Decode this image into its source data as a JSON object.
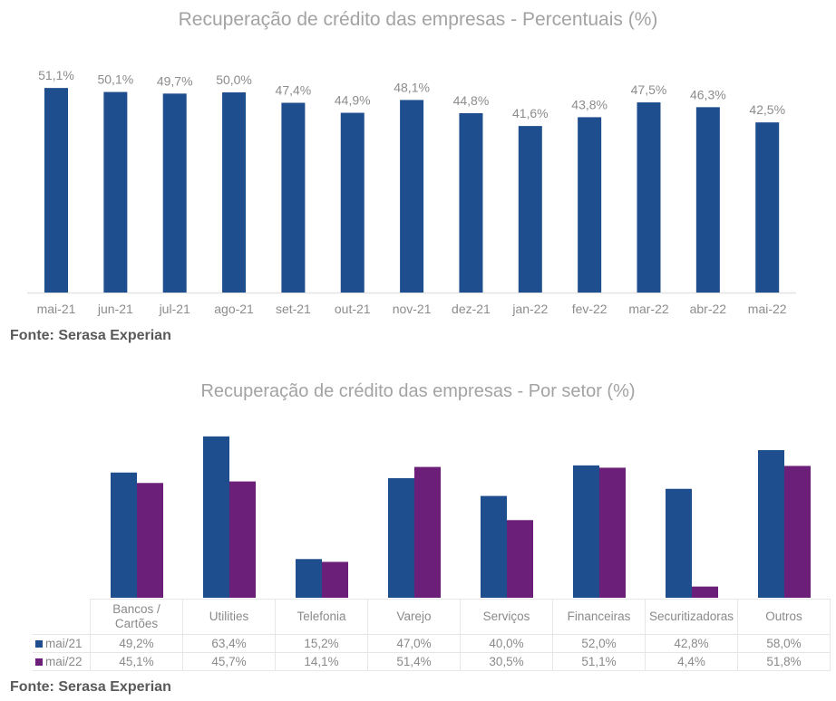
{
  "chart_data": [
    {
      "type": "bar",
      "title": "Recuperação de crédito das empresas - Percentuais (%)",
      "source": "Fonte: Serasa Experian",
      "categories": [
        "mai-21",
        "jun-21",
        "jul-21",
        "ago-21",
        "set-21",
        "out-21",
        "nov-21",
        "dez-21",
        "jan-22",
        "fev-22",
        "mar-22",
        "abr-22",
        "mai-22"
      ],
      "values": [
        51.1,
        50.1,
        49.7,
        50.0,
        47.4,
        44.9,
        48.1,
        44.8,
        41.6,
        43.8,
        47.5,
        46.3,
        42.5
      ],
      "labels": [
        "51,1%",
        "50,1%",
        "49,7%",
        "50,0%",
        "47,4%",
        "44,9%",
        "48,1%",
        "44,8%",
        "41,6%",
        "43,8%",
        "47,5%",
        "46,3%",
        "42,5%"
      ],
      "xlabel": "",
      "ylabel": "",
      "ylim": [
        0,
        55
      ],
      "grid": false,
      "color": "#1f4e8f"
    },
    {
      "type": "bar",
      "title": "Recuperação de crédito das empresas - Por setor (%)",
      "source": "Fonte: Serasa Experian",
      "categories": [
        [
          "Bancos /",
          "Cartões"
        ],
        [
          "Utilities"
        ],
        [
          "Telefonia"
        ],
        [
          "Varejo"
        ],
        [
          "Serviços"
        ],
        [
          "Financeiras"
        ],
        [
          "Securitizadoras"
        ],
        [
          "Outros"
        ]
      ],
      "series": [
        {
          "name": "mai/21",
          "color": "#1f4e8f",
          "values": [
            49.2,
            63.4,
            15.2,
            47.0,
            40.0,
            52.0,
            42.8,
            58.0
          ],
          "labels": [
            "49,2%",
            "63,4%",
            "15,2%",
            "47,0%",
            "40,0%",
            "52,0%",
            "42,8%",
            "58,0%"
          ]
        },
        {
          "name": "mai/22",
          "color": "#6b1f78",
          "values": [
            45.1,
            45.7,
            14.1,
            51.4,
            30.5,
            51.1,
            4.4,
            51.8
          ],
          "labels": [
            "45,1%",
            "45,7%",
            "14,1%",
            "51,4%",
            "30,5%",
            "51,1%",
            "4,4%",
            "51,8%"
          ]
        }
      ],
      "xlabel": "",
      "ylabel": "",
      "ylim": [
        0,
        70
      ],
      "grid": false,
      "legend": "data-table"
    }
  ]
}
